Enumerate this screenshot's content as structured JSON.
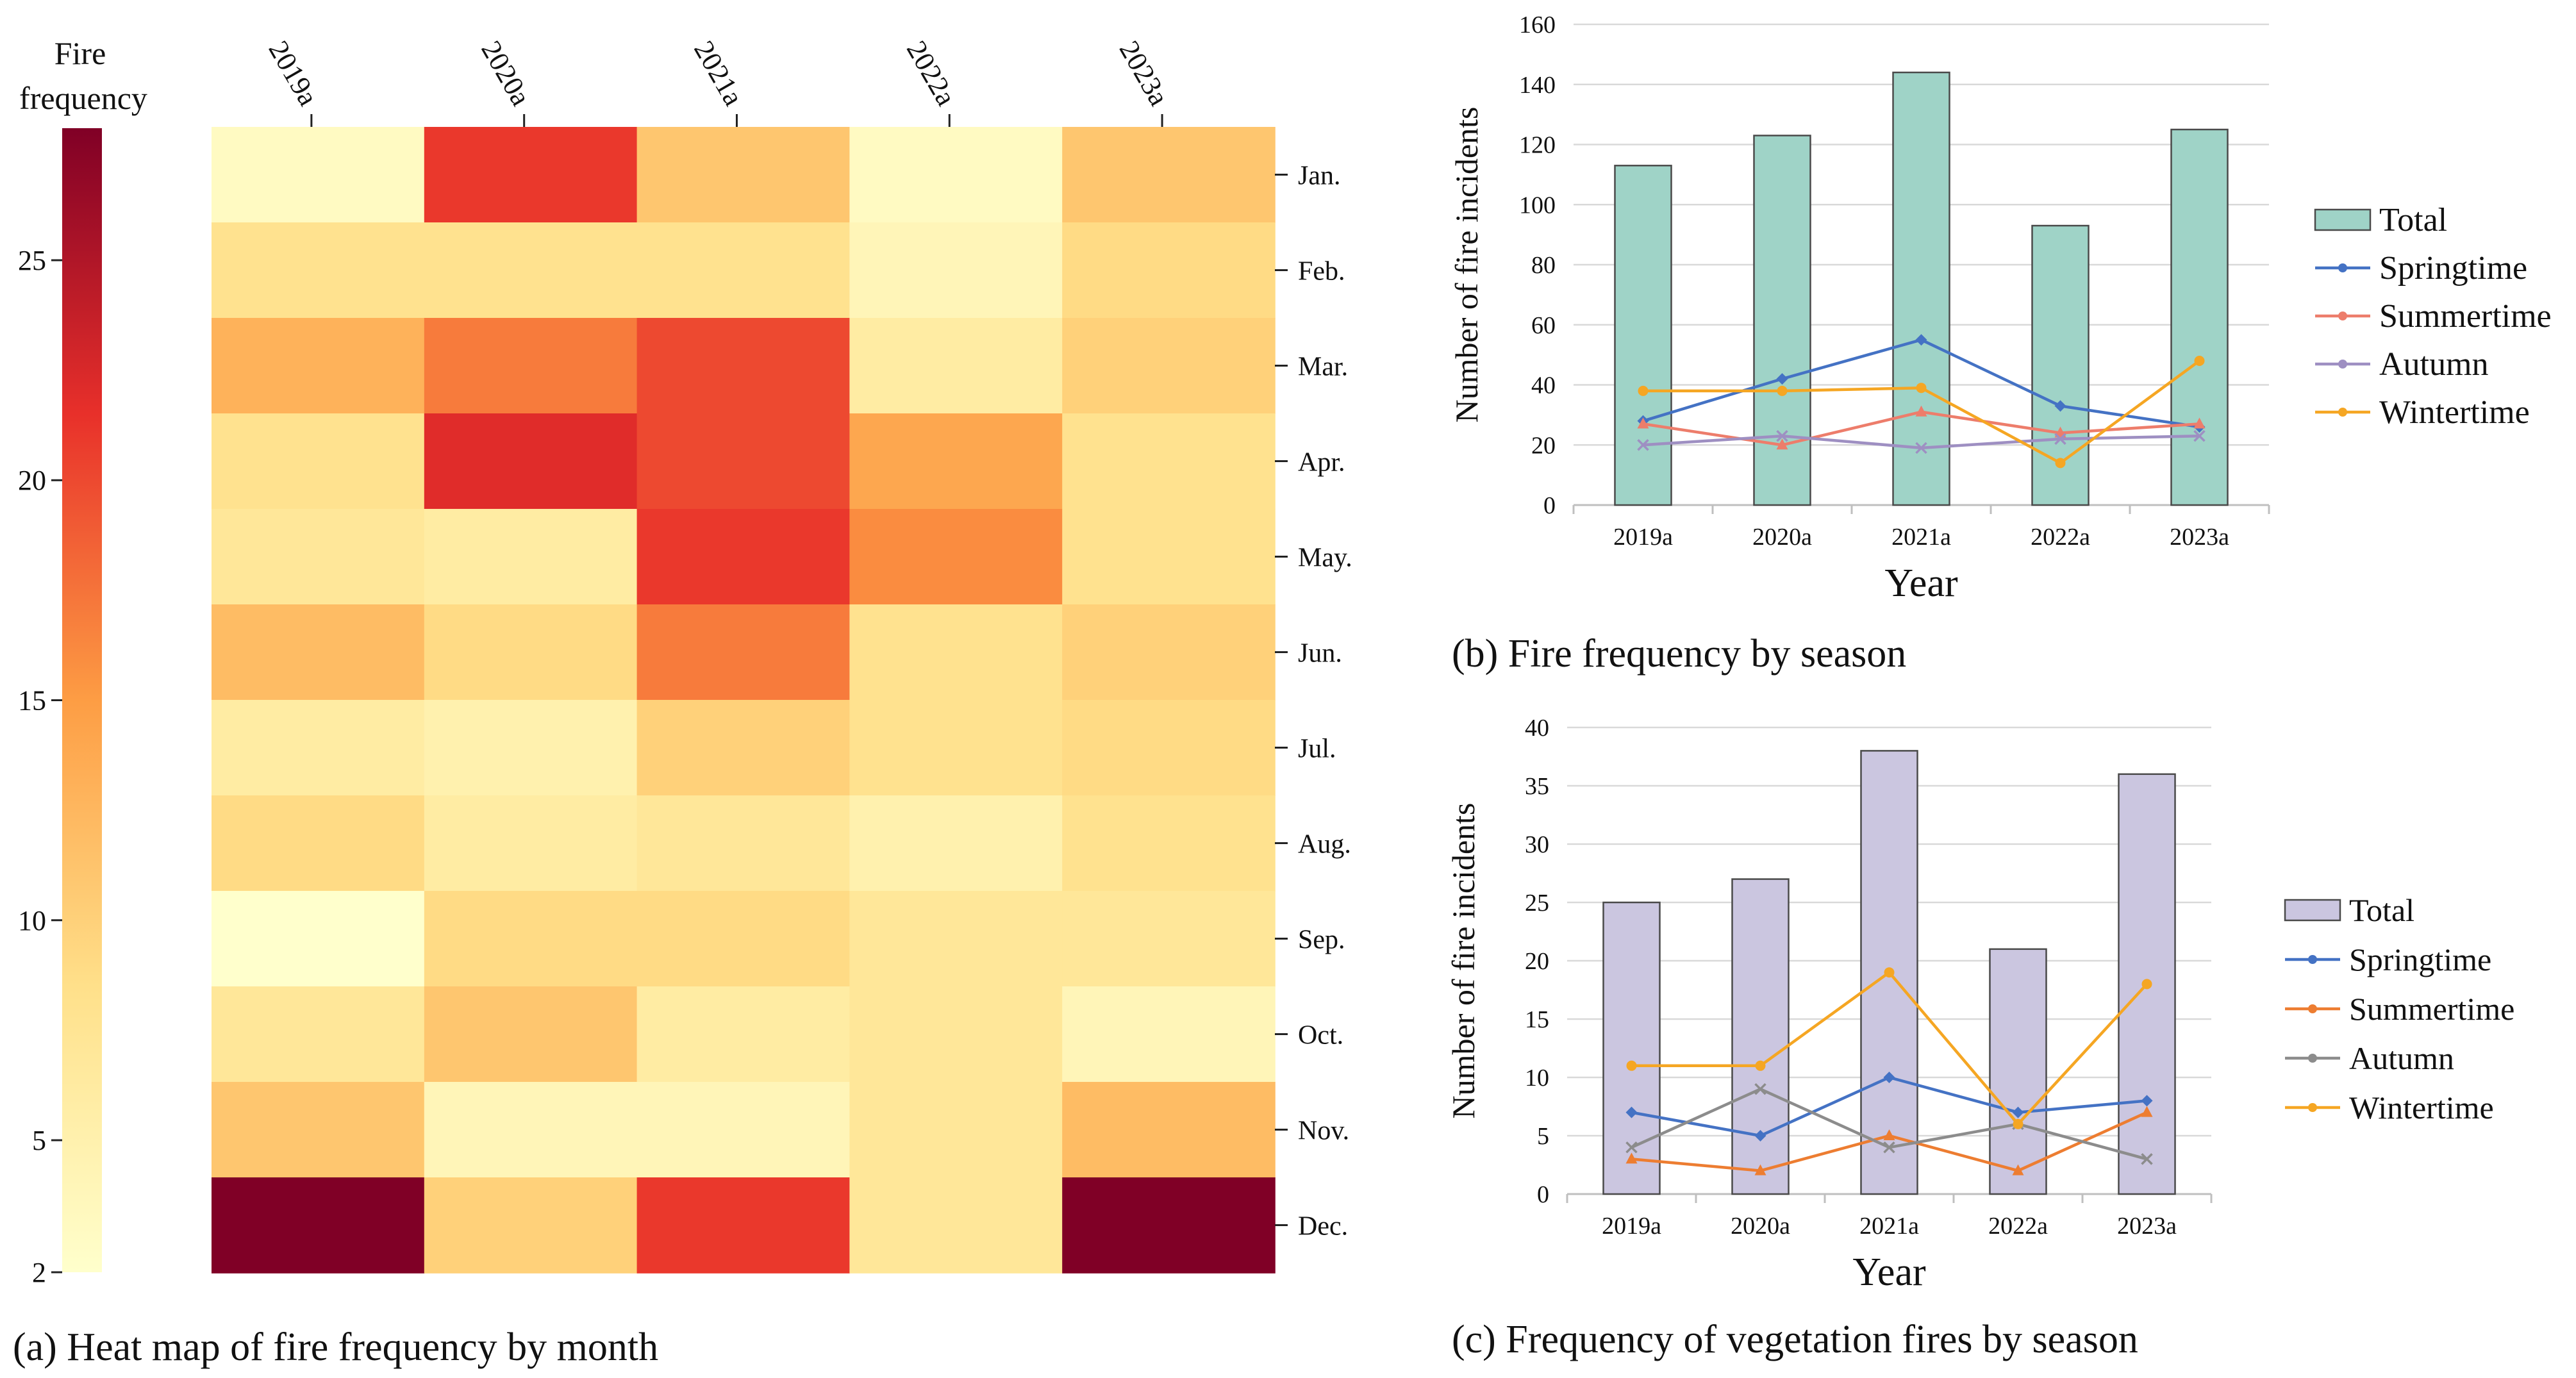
{
  "heatmap": {
    "colorbar_title_line1": "Fire",
    "colorbar_title_line2": "frequency",
    "caption": "(a) Heat map of fire frequency by month",
    "colorbar_ticks": [
      "2",
      "5",
      "10",
      "15",
      "20",
      "25"
    ]
  },
  "season_chart": {
    "caption": "(b) Fire frequency by season",
    "ylabel": "Number of fire incidents",
    "xlabel": "Year"
  },
  "veg_chart": {
    "caption": "(c) Frequency of vegetation fires by season",
    "ylabel": "Number of fire incidents",
    "xlabel": "Year"
  },
  "chart_data": [
    {
      "type": "heatmap",
      "title": "Heat map of fire frequency by month",
      "x": [
        "2019a",
        "2020a",
        "2021a",
        "2022a",
        "2023a"
      ],
      "y": [
        "Jan.",
        "Feb.",
        "Mar.",
        "Apr.",
        "May.",
        "Jun.",
        "Jul.",
        "Aug.",
        "Sep.",
        "Oct.",
        "Nov.",
        "Dec."
      ],
      "values": [
        [
          3,
          21,
          11,
          3,
          11
        ],
        [
          8,
          8,
          8,
          4,
          9
        ],
        [
          13,
          17,
          20,
          6,
          10
        ],
        [
          8,
          22,
          20,
          14,
          8
        ],
        [
          7,
          6,
          21,
          16,
          8
        ],
        [
          12,
          9,
          17,
          8,
          10
        ],
        [
          6,
          5,
          10,
          8,
          9
        ],
        [
          9,
          6,
          7,
          5,
          8
        ],
        [
          2,
          9,
          9,
          7,
          7
        ],
        [
          7,
          11,
          6,
          7,
          4
        ],
        [
          11,
          4,
          4,
          7,
          12
        ],
        [
          28,
          10,
          21,
          7,
          28
        ]
      ],
      "colorbar_label": "Fire frequency",
      "range": [
        2,
        28
      ]
    },
    {
      "type": "bar",
      "title": "Fire frequency by season",
      "categories": [
        "2019a",
        "2020a",
        "2021a",
        "2022a",
        "2023a"
      ],
      "series": [
        {
          "name": "Total",
          "kind": "bar",
          "values": [
            113,
            123,
            144,
            93,
            125
          ],
          "color": "#9fd3c7"
        },
        {
          "name": "Springtime",
          "kind": "line",
          "values": [
            28,
            42,
            55,
            33,
            26
          ],
          "color": "#4472c4"
        },
        {
          "name": "Summertime",
          "kind": "line",
          "values": [
            27,
            20,
            31,
            24,
            27
          ],
          "color": "#ed7d6b"
        },
        {
          "name": "Autumn",
          "kind": "line",
          "values": [
            20,
            23,
            19,
            22,
            23
          ],
          "color": "#9e8fc2"
        },
        {
          "name": "Wintertime",
          "kind": "line",
          "values": [
            38,
            38,
            39,
            14,
            48
          ],
          "color": "#f5a623"
        }
      ],
      "xlabel": "Year",
      "ylabel": "Number of fire incidents",
      "ylim": [
        0,
        160
      ],
      "yticks": [
        0,
        20,
        40,
        60,
        80,
        100,
        120,
        140,
        160
      ]
    },
    {
      "type": "bar",
      "title": "Frequency of vegetation fires by season",
      "categories": [
        "2019a",
        "2020a",
        "2021a",
        "2022a",
        "2023a"
      ],
      "series": [
        {
          "name": "Total",
          "kind": "bar",
          "values": [
            25,
            27,
            38,
            21,
            36
          ],
          "color": "#cbc6e0"
        },
        {
          "name": "Springtime",
          "kind": "line",
          "values": [
            7,
            5,
            10,
            7,
            8
          ],
          "color": "#4472c4"
        },
        {
          "name": "Summertime",
          "kind": "line",
          "values": [
            3,
            2,
            5,
            2,
            7
          ],
          "color": "#ed7d31"
        },
        {
          "name": "Autumn",
          "kind": "line",
          "values": [
            4,
            9,
            4,
            6,
            3
          ],
          "color": "#8c8c8c"
        },
        {
          "name": "Wintertime",
          "kind": "line",
          "values": [
            11,
            11,
            19,
            6,
            18
          ],
          "color": "#f5a623"
        }
      ],
      "xlabel": "Year",
      "ylabel": "Number of fire incidents",
      "ylim": [
        0,
        40
      ],
      "yticks": [
        0,
        5,
        10,
        15,
        20,
        25,
        30,
        35,
        40
      ]
    }
  ]
}
